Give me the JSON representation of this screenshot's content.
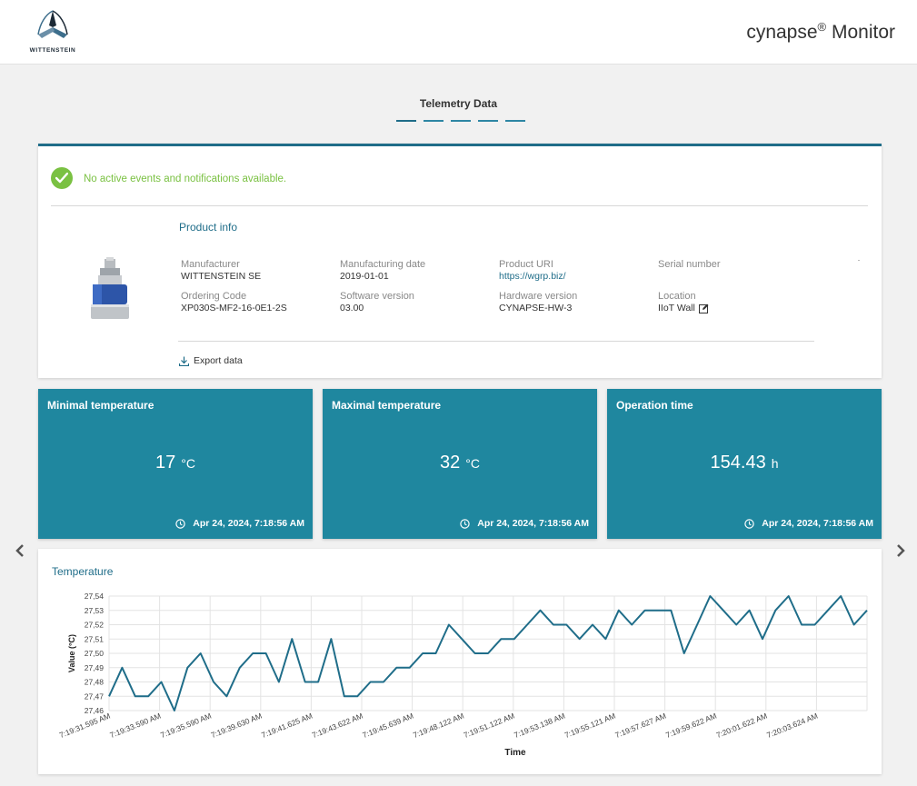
{
  "header": {
    "logo_text": "WITTENSTEIN",
    "app_title": "cynapse",
    "app_title_reg": "®",
    "app_title_suffix": " Monitor"
  },
  "section": {
    "title": "Telemetry Data",
    "pages": 5,
    "active_page": 1
  },
  "notification": {
    "icon": "check-circle-icon",
    "text": "No active events and notifications available."
  },
  "product": {
    "title": "Product info",
    "manufacturer_label": "Manufacturer",
    "manufacturer": "WITTENSTEIN SE",
    "mfg_date_label": "Manufacturing date",
    "mfg_date": "2019-01-01",
    "uri_label": "Product URI",
    "uri": "https://wgrp.biz/",
    "serial_label": "Serial number",
    "serial": "",
    "ordering_label": "Ordering Code",
    "ordering": "XP030S-MF2-16-0E1-2S",
    "software_label": "Software version",
    "software": "03.00",
    "hardware_label": "Hardware version",
    "hardware": "CYNAPSE-HW-3",
    "location_label": "Location",
    "location": "IIoT Wall",
    "export_label": "Export data"
  },
  "tiles": [
    {
      "title": "Minimal temperature",
      "value": "17",
      "unit": "°C",
      "timestamp": "Apr 24, 2024, 7:18:56 AM"
    },
    {
      "title": "Maximal temperature",
      "value": "32",
      "unit": "°C",
      "timestamp": "Apr 24, 2024, 7:18:56 AM"
    },
    {
      "title": "Operation time",
      "value": "154.43",
      "unit": "h",
      "timestamp": "Apr 24, 2024, 7:18:56 AM"
    }
  ],
  "colors": {
    "accent": "#1f879f",
    "line": "#1f6d89",
    "ok": "#7ac142"
  },
  "chart_data": {
    "type": "line",
    "title": "Temperature",
    "xlabel": "Time",
    "ylabel": "Value (°C)",
    "ylim": [
      27.46,
      27.54
    ],
    "yticks": [
      "27,54",
      "27,53",
      "27,52",
      "27,51",
      "27,50",
      "27,49",
      "27,48",
      "27,47",
      "27,46"
    ],
    "xticks": [
      "7:19:31.595 AM",
      "7:19:33.590 AM",
      "7:19:35.590 AM",
      "7:19:39.630 AM",
      "7:19:41.625 AM",
      "7:19:43.622 AM",
      "7:19:45.639 AM",
      "7:19:48.122 AM",
      "7:19:51.122 AM",
      "7:19:53.138 AM",
      "7:19:55.121 AM",
      "7:19:57.627 AM",
      "7:19:59.622 AM",
      "7:20:01.622 AM",
      "7:20:03.624 AM"
    ],
    "grid": true,
    "series": [
      {
        "values": [
          27.47,
          27.49,
          27.47,
          27.47,
          27.48,
          27.46,
          27.49,
          27.5,
          27.48,
          27.47,
          27.49,
          27.5,
          27.5,
          27.48,
          27.51,
          27.48,
          27.48,
          27.51,
          27.47,
          27.47,
          27.48,
          27.48,
          27.49,
          27.49,
          27.5,
          27.5,
          27.52,
          27.51,
          27.5,
          27.5,
          27.51,
          27.51,
          27.52,
          27.53,
          27.52,
          27.52,
          27.51,
          27.52,
          27.51,
          27.53,
          27.52,
          27.53,
          27.53,
          27.53,
          27.5,
          27.52,
          27.54,
          27.53,
          27.52,
          27.53,
          27.51,
          27.53,
          27.54,
          27.52,
          27.52,
          27.53,
          27.54,
          27.52,
          27.53
        ]
      }
    ]
  }
}
